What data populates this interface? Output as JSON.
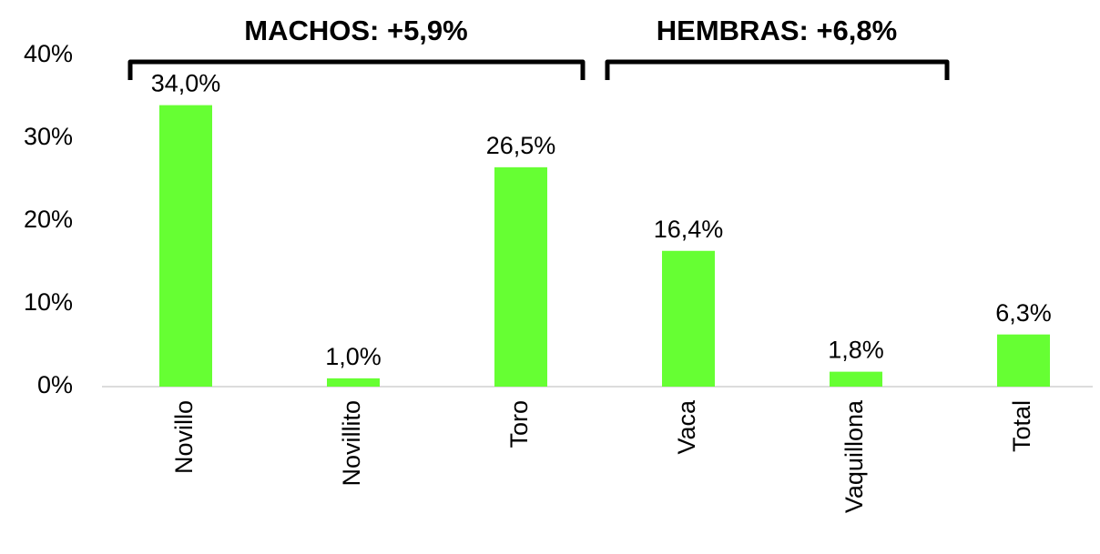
{
  "chart_data": {
    "type": "bar",
    "annotations": [
      "MACHOS: +5,9%",
      "HEMBRAS: +6,8%"
    ],
    "categories": [
      "Novillo",
      "Novillito",
      "Toro",
      "Vaca",
      "Vaquillona",
      "Total"
    ],
    "values": [
      34.0,
      1.0,
      26.5,
      16.4,
      1.8,
      6.3
    ],
    "value_labels": [
      "34,0%",
      "1,0%",
      "26,5%",
      "16,4%",
      "1,8%",
      "6,3%"
    ],
    "color": "#66ff33",
    "ylim": [
      0,
      40
    ],
    "yticks": [
      {
        "value": 0,
        "label": "0%"
      },
      {
        "value": 10,
        "label": "10%"
      },
      {
        "value": 20,
        "label": "20%"
      },
      {
        "value": 30,
        "label": "30%"
      },
      {
        "value": 40,
        "label": "40%"
      }
    ],
    "grid": false
  }
}
